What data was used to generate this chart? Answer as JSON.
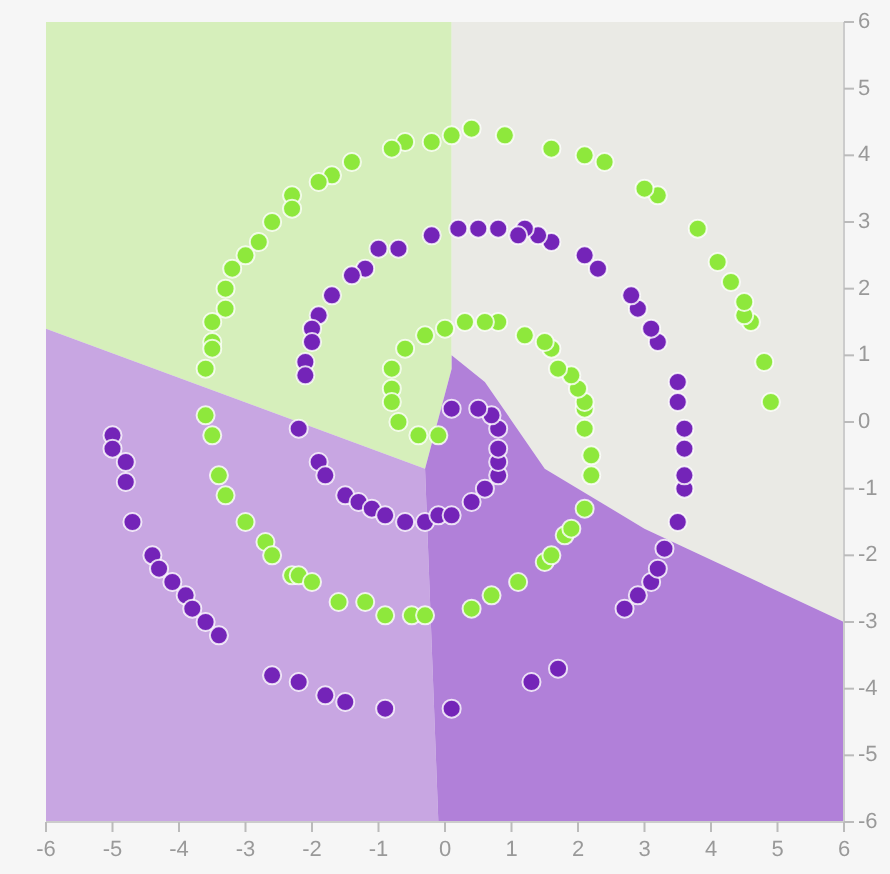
{
  "chart_data": {
    "type": "scatter",
    "xlim": [
      -6,
      6
    ],
    "ylim": [
      -6,
      6
    ],
    "xticks": [
      -6,
      -5,
      -4,
      -3,
      -2,
      -1,
      0,
      1,
      2,
      3,
      4,
      5,
      6
    ],
    "yticks": [
      -6,
      -5,
      -4,
      -3,
      -2,
      -1,
      0,
      1,
      2,
      3,
      4,
      5,
      6
    ],
    "marker": "circle",
    "series": [
      {
        "color": "#7424b8",
        "x": [
          -5.0,
          -5.0,
          -4.8,
          -4.8,
          -4.7,
          -4.4,
          -4.3,
          -4.1,
          -3.9,
          -3.8,
          -3.6,
          -3.4,
          -2.6,
          -2.2,
          -1.8,
          -1.5,
          -0.9,
          0.1,
          1.3,
          1.7,
          2.7,
          2.9,
          3.1,
          3.2,
          3.3,
          3.5,
          3.6,
          3.6,
          3.6,
          3.6,
          3.5,
          3.5,
          3.2,
          3.1,
          2.9,
          2.8,
          2.3,
          2.1,
          1.6,
          1.4,
          1.2,
          1.1,
          0.8,
          0.5,
          0.2,
          -0.2,
          -0.7,
          -1.0,
          -1.2,
          -1.4,
          -1.7,
          -1.9,
          -2.0,
          -2.0,
          -2.1,
          -2.1,
          -2.2,
          -1.9,
          -1.8,
          -1.5,
          -1.3,
          -1.1,
          -0.9,
          -0.6,
          -0.3,
          -0.1,
          0.1,
          0.4,
          0.6,
          0.8,
          0.8,
          0.8,
          0.8,
          0.7,
          0.5,
          0.1
        ],
        "values": [
          -0.2,
          -0.4,
          -0.6,
          -0.9,
          -1.5,
          -2.0,
          -2.2,
          -2.4,
          -2.6,
          -2.8,
          -3.0,
          -3.2,
          -3.8,
          -3.9,
          -4.1,
          -4.2,
          -4.3,
          -4.3,
          -3.9,
          -3.7,
          -2.8,
          -2.6,
          -2.4,
          -2.2,
          -1.9,
          -1.5,
          -1.0,
          -0.8,
          -0.4,
          -0.1,
          0.3,
          0.6,
          1.2,
          1.4,
          1.7,
          1.9,
          2.3,
          2.5,
          2.7,
          2.8,
          2.9,
          2.8,
          2.9,
          2.9,
          2.9,
          2.8,
          2.6,
          2.6,
          2.3,
          2.2,
          1.9,
          1.6,
          1.4,
          1.2,
          0.9,
          0.7,
          -0.1,
          -0.6,
          -0.8,
          -1.1,
          -1.2,
          -1.3,
          -1.4,
          -1.5,
          -1.5,
          -1.4,
          -1.4,
          -1.2,
          -1.0,
          -0.8,
          -0.6,
          -0.4,
          -0.1,
          0.1,
          0.2,
          0.2
        ]
      },
      {
        "color": "#8ee83c",
        "x": [
          4.9,
          4.8,
          4.6,
          4.5,
          4.5,
          4.3,
          4.1,
          3.8,
          3.2,
          3.0,
          2.4,
          2.1,
          1.6,
          0.9,
          0.4,
          0.1,
          -0.2,
          -0.6,
          -0.8,
          -1.4,
          -1.7,
          -1.9,
          -2.3,
          -2.3,
          -2.6,
          -2.8,
          -3.0,
          -3.2,
          -3.3,
          -3.3,
          -3.5,
          -3.5,
          -3.5,
          -3.6,
          -3.6,
          -3.5,
          -3.4,
          -3.3,
          -3.0,
          -2.7,
          -2.6,
          -2.3,
          -2.2,
          -2.0,
          -1.6,
          -1.2,
          -0.9,
          -0.5,
          -0.3,
          0.4,
          0.7,
          1.1,
          1.5,
          1.6,
          1.8,
          1.9,
          2.1,
          2.2,
          2.2,
          2.1,
          2.1,
          2.1,
          2.0,
          1.9,
          1.7,
          1.6,
          1.5,
          1.2,
          0.8,
          0.6,
          0.3,
          0.0,
          -0.3,
          -0.6,
          -0.8,
          -0.8,
          -0.8,
          -0.7,
          -0.4,
          -0.1
        ],
        "values": [
          0.3,
          0.9,
          1.5,
          1.6,
          1.8,
          2.1,
          2.4,
          2.9,
          3.4,
          3.5,
          3.9,
          4.0,
          4.1,
          4.3,
          4.4,
          4.3,
          4.2,
          4.2,
          4.1,
          3.9,
          3.7,
          3.6,
          3.4,
          3.2,
          3.0,
          2.7,
          2.5,
          2.3,
          2.0,
          1.7,
          1.5,
          1.2,
          1.1,
          0.8,
          0.1,
          -0.2,
          -0.8,
          -1.1,
          -1.5,
          -1.8,
          -2.0,
          -2.3,
          -2.3,
          -2.4,
          -2.7,
          -2.7,
          -2.9,
          -2.9,
          -2.9,
          -2.8,
          -2.6,
          -2.4,
          -2.1,
          -2.0,
          -1.7,
          -1.6,
          -1.3,
          -0.8,
          -0.5,
          -0.1,
          0.2,
          0.3,
          0.5,
          0.7,
          0.8,
          1.1,
          1.2,
          1.3,
          1.5,
          1.5,
          1.5,
          1.4,
          1.3,
          1.1,
          0.8,
          0.5,
          0.3,
          0.0,
          -0.2,
          -0.2
        ]
      }
    ]
  }
}
